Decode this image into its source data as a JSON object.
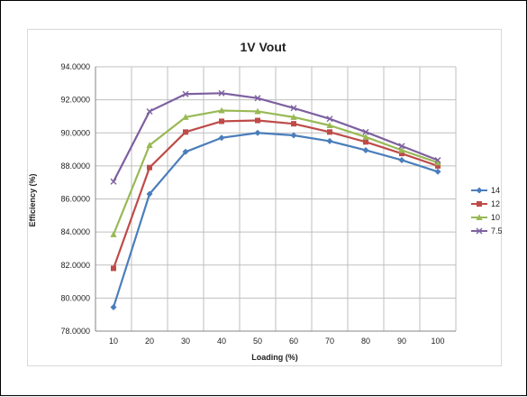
{
  "chart_data": {
    "type": "line",
    "title": "1V Vout",
    "xlabel": "Loading (%)",
    "ylabel": "Efficiency (%)",
    "ylim": [
      78,
      94
    ],
    "yticks": [
      "78.0000",
      "80.0000",
      "82.0000",
      "84.0000",
      "86.0000",
      "88.0000",
      "90.0000",
      "92.0000",
      "94.0000"
    ],
    "categories": [
      "10",
      "20",
      "30",
      "40",
      "50",
      "60",
      "70",
      "80",
      "90",
      "100"
    ],
    "grid": true,
    "legend_position": "right",
    "series": [
      {
        "name": "14",
        "color": "#4a7ebb",
        "marker": "diamond",
        "values": [
          79.45,
          86.3,
          88.85,
          89.7,
          90.0,
          89.85,
          89.5,
          88.95,
          88.35,
          87.65
        ]
      },
      {
        "name": "12",
        "color": "#be4b48",
        "marker": "square",
        "values": [
          81.8,
          87.9,
          90.05,
          90.7,
          90.75,
          90.55,
          90.05,
          89.45,
          88.75,
          88.0
        ]
      },
      {
        "name": "10",
        "color": "#98b954",
        "marker": "triangle",
        "values": [
          83.85,
          89.25,
          90.95,
          91.35,
          91.3,
          90.95,
          90.45,
          89.75,
          88.95,
          88.2
        ]
      },
      {
        "name": "7.5",
        "color": "#7d60a0",
        "marker": "x",
        "values": [
          87.05,
          91.3,
          92.35,
          92.4,
          92.1,
          91.5,
          90.85,
          90.05,
          89.2,
          88.35
        ]
      }
    ]
  }
}
